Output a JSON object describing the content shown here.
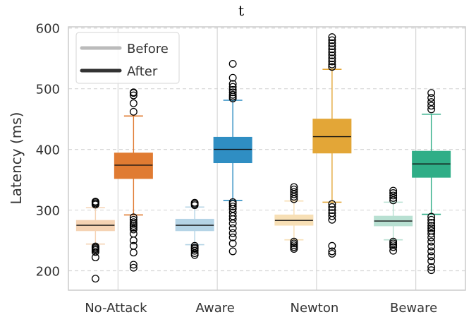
{
  "chart_data": {
    "type": "boxplot",
    "title": "t",
    "ylabel": "Latency (ms)",
    "xlabel": "",
    "ylim": [
      168,
      602
    ],
    "yticks": [
      200,
      300,
      400,
      500,
      600
    ],
    "ytick_labels": [
      "200",
      "300",
      "400",
      "500",
      "600"
    ],
    "grid": "horizontal dashed",
    "legend_position": "top-left",
    "categories": [
      "No-Attack",
      "Aware",
      "Newton",
      "Beware"
    ],
    "series": [
      {
        "name": "Before",
        "legend_color": "#bbbbbb",
        "boxes": [
          {
            "category": "No-Attack",
            "color": "#f5d3b4",
            "q1": 266,
            "median": 275,
            "q3": 283,
            "whisker_low": 244,
            "whisker_high": 304,
            "outliers": [
              309,
              311,
              313,
              314,
              240,
              238,
              236,
              234,
              231,
              222,
              187
            ]
          },
          {
            "category": "Aware",
            "color": "#b5d4e6",
            "q1": 266,
            "median": 275,
            "q3": 285,
            "whisker_low": 243,
            "whisker_high": 305,
            "outliers": [
              308,
              310,
              312,
              241,
              238,
              236,
              233,
              229,
              226
            ]
          },
          {
            "category": "Newton",
            "color": "#f7dfb5",
            "q1": 275,
            "median": 283,
            "q3": 292,
            "whisker_low": 251,
            "whisker_high": 315,
            "outliers": [
              318,
              322,
              326,
              330,
              334,
              338,
              248,
              245,
              242,
              239,
              236
            ]
          },
          {
            "category": "Beware",
            "color": "#b8e0d2",
            "q1": 274,
            "median": 282,
            "q3": 290,
            "whisker_low": 251,
            "whisker_high": 313,
            "outliers": [
              316,
              320,
              324,
              328,
              332,
              248,
              245,
              242,
              239,
              233
            ]
          }
        ]
      },
      {
        "name": "After",
        "legend_color": "#333333",
        "boxes": [
          {
            "category": "No-Attack",
            "color": "#e07b32",
            "q1": 352,
            "median": 374,
            "q3": 394,
            "whisker_low": 292,
            "whisker_high": 455,
            "outliers": [
              462,
              476,
              489,
              493,
              494,
              288,
              284,
              280,
              277,
              274,
              271,
              268,
              261,
              250,
              241,
              230,
              210,
              205
            ]
          },
          {
            "category": "Aware",
            "color": "#2f8ec3",
            "q1": 378,
            "median": 400,
            "q3": 420,
            "whisker_low": 316,
            "whisker_high": 481,
            "outliers": [
              484,
              487,
              490,
              494,
              498,
              503,
              508,
              518,
              541,
              313,
              310,
              306,
              302,
              296,
              290,
              285,
              278,
              270,
              262,
              255,
              245,
              232
            ]
          },
          {
            "category": "Newton",
            "color": "#e3a637",
            "q1": 394,
            "median": 421,
            "q3": 450,
            "whisker_low": 313,
            "whisker_high": 532,
            "outliers": [
              536,
              540,
              545,
              550,
              555,
              560,
              565,
              570,
              575,
              580,
              585,
              310,
              305,
              300,
              295,
              290,
              284,
              241,
              232,
              228
            ]
          },
          {
            "category": "Beware",
            "color": "#2fae87",
            "q1": 354,
            "median": 376,
            "q3": 397,
            "whisker_low": 293,
            "whisker_high": 458,
            "outliers": [
              466,
              472,
              478,
              485,
              493,
              289,
              284,
              279,
              274,
              270,
              266,
              261,
              255,
              248,
              240,
              232,
              224,
              216,
              206,
              201
            ]
          }
        ]
      }
    ]
  }
}
